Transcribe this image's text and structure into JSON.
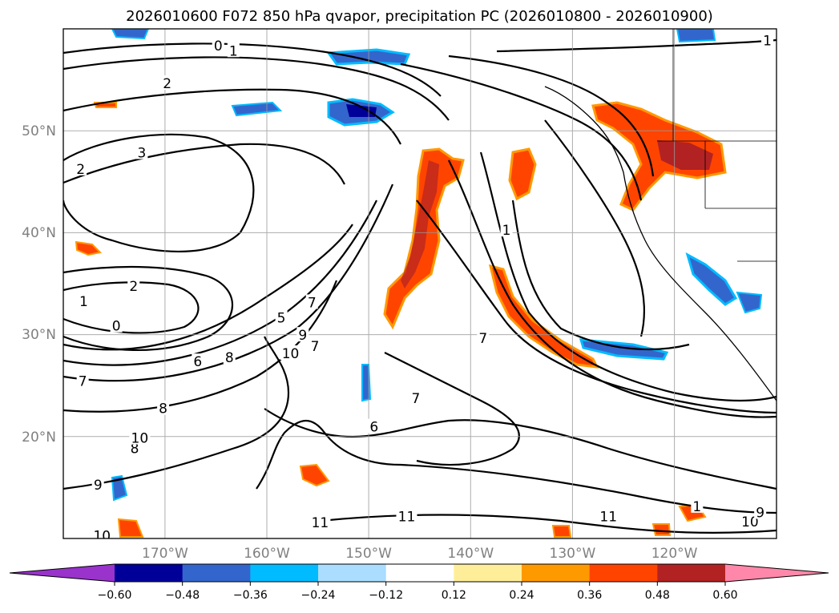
{
  "chart_data": {
    "type": "map-contour",
    "title": "2026010600 F072 850 hPa qvapor, precipitation PC (2026010800 - 2026010900)",
    "lon_range": [
      -178,
      -108
    ],
    "lat_range": [
      10,
      60
    ],
    "lon_ticks": [
      {
        "value": -170,
        "label": "170°W"
      },
      {
        "value": -160,
        "label": "160°W"
      },
      {
        "value": -150,
        "label": "150°W"
      },
      {
        "value": -140,
        "label": "140°W"
      },
      {
        "value": -130,
        "label": "130°W"
      },
      {
        "value": -120,
        "label": "120°W"
      }
    ],
    "lat_ticks": [
      {
        "value": 20,
        "label": "20°N"
      },
      {
        "value": 30,
        "label": "30°N"
      },
      {
        "value": 40,
        "label": "40°N"
      },
      {
        "value": 50,
        "label": "50°N"
      }
    ],
    "colorbar": {
      "ticks": [
        "−0.60",
        "−0.48",
        "−0.36",
        "−0.24",
        "−0.12",
        "0.12",
        "0.24",
        "0.36",
        "0.48",
        "0.60"
      ],
      "colors": [
        "#9933cc",
        "#000099",
        "#3366cc",
        "#00bbff",
        "#aaddff",
        "#ffffff",
        "#ffee99",
        "#ff9900",
        "#ff4400",
        "#b22222",
        "#ff88aa"
      ],
      "extend": "both"
    },
    "contour_labels": [
      {
        "text": "0",
        "lon": -162.8,
        "lat": 58.2
      },
      {
        "text": "1",
        "lon": -161.3,
        "lat": 57.7
      },
      {
        "text": "2",
        "lon": -167.8,
        "lat": 54.5
      },
      {
        "text": "3",
        "lon": -170.3,
        "lat": 47.7
      },
      {
        "text": "2",
        "lon": -176.3,
        "lat": 46.1
      },
      {
        "text": "1",
        "lon": -176.0,
        "lat": 33.1
      },
      {
        "text": "2",
        "lon": -171.1,
        "lat": 34.6
      },
      {
        "text": "0",
        "lon": -172.8,
        "lat": 30.7
      },
      {
        "text": "7",
        "lon": -176.1,
        "lat": 25.3
      },
      {
        "text": "8",
        "lon": -168.2,
        "lat": 22.6
      },
      {
        "text": "8",
        "lon": -171.0,
        "lat": 18.7
      },
      {
        "text": "9",
        "lon": -174.6,
        "lat": 15.1
      },
      {
        "text": "10",
        "lon": -170.5,
        "lat": 19.7
      },
      {
        "text": "10",
        "lon": -174.2,
        "lat": 10.1
      },
      {
        "text": "6",
        "lon": -164.8,
        "lat": 27.2
      },
      {
        "text": "8",
        "lon": -161.7,
        "lat": 27.6
      },
      {
        "text": "5",
        "lon": -156.6,
        "lat": 31.5
      },
      {
        "text": "10",
        "lon": -155.7,
        "lat": 28.0
      },
      {
        "text": "9",
        "lon": -154.5,
        "lat": 29.8
      },
      {
        "text": "7",
        "lon": -153.6,
        "lat": 33.0
      },
      {
        "text": "7",
        "lon": -153.3,
        "lat": 28.7
      },
      {
        "text": "7",
        "lon": -143.4,
        "lat": 23.6
      },
      {
        "text": "6",
        "lon": -147.5,
        "lat": 20.8
      },
      {
        "text": "11",
        "lon": -152.8,
        "lat": 11.4
      },
      {
        "text": "11",
        "lon": -144.3,
        "lat": 12.0
      },
      {
        "text": "11",
        "lon": -124.5,
        "lat": 12.0
      },
      {
        "text": "1",
        "lon": -115.8,
        "lat": 13.0
      },
      {
        "text": "10",
        "lon": -110.6,
        "lat": 11.5
      },
      {
        "text": "9",
        "lon": -109.6,
        "lat": 12.4
      },
      {
        "text": "1",
        "lon": -134.5,
        "lat": 40.1
      },
      {
        "text": "1",
        "lon": -108.9,
        "lat": 58.7
      },
      {
        "text": "7",
        "lon": -136.8,
        "lat": 29.5
      }
    ]
  }
}
